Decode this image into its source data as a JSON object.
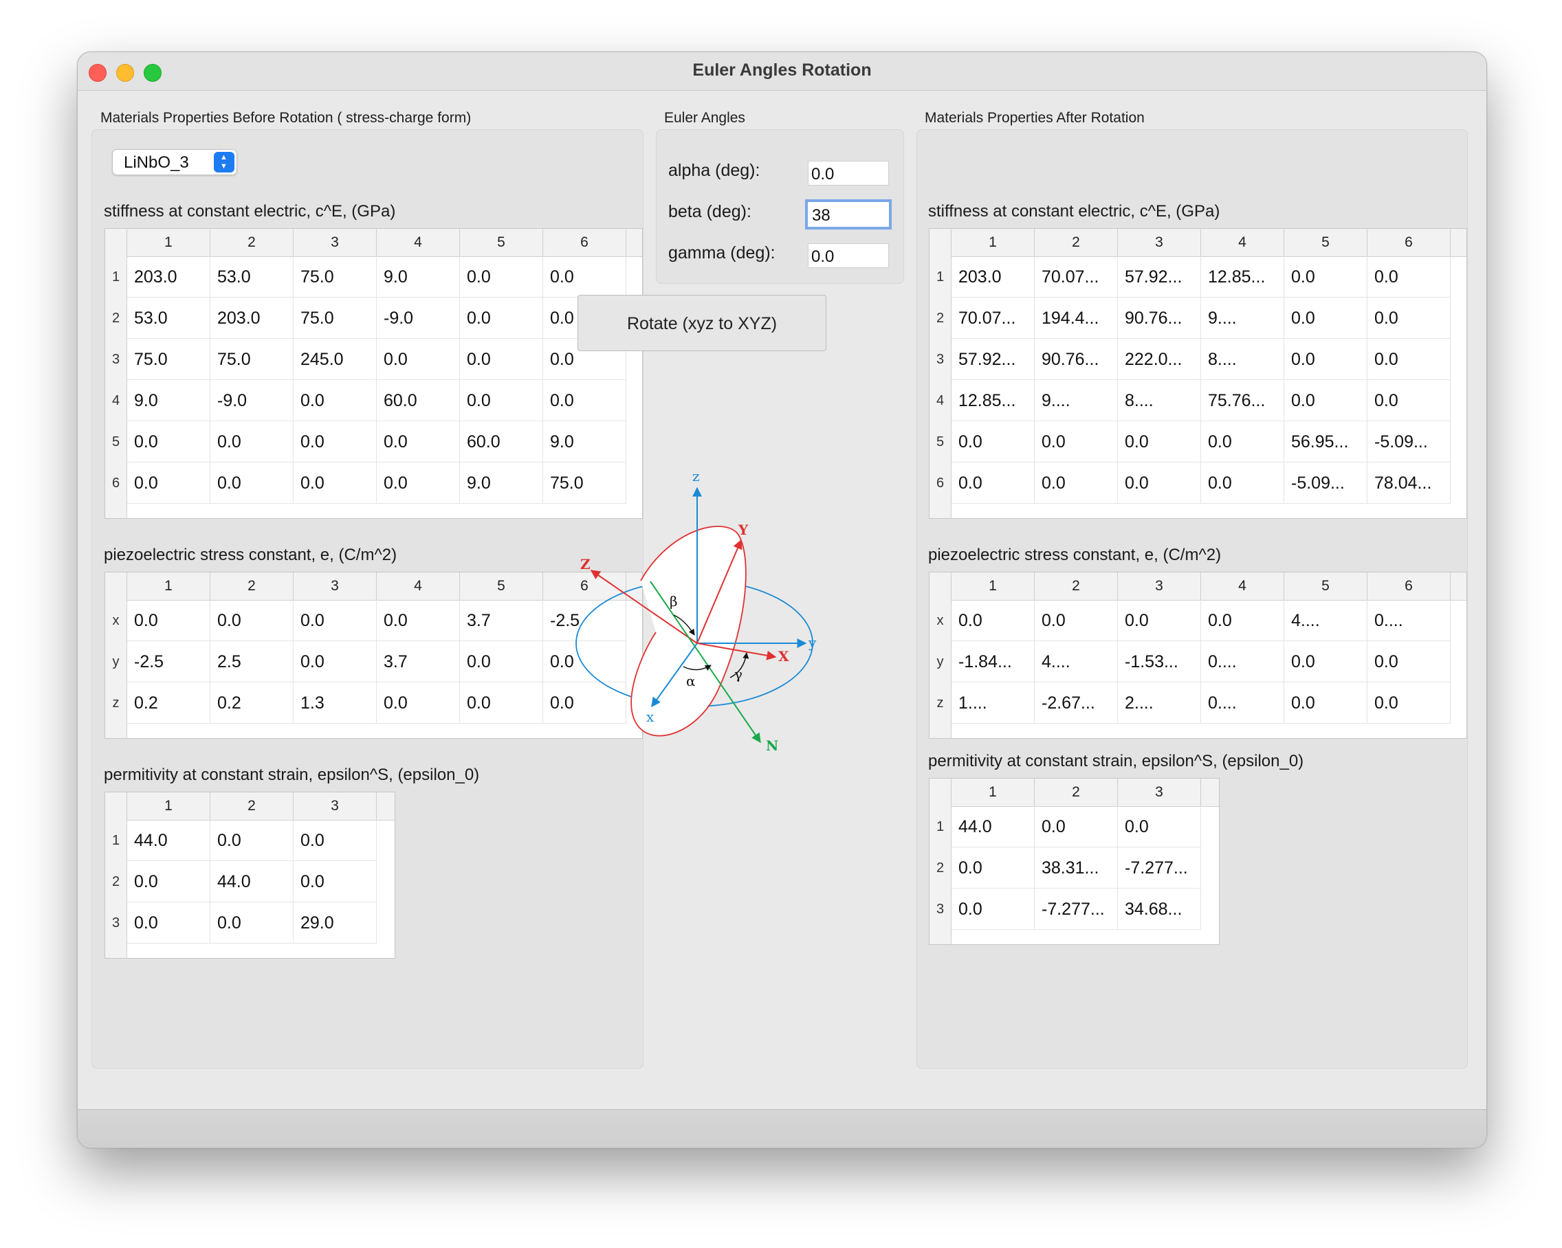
{
  "window": {
    "title": "Euler Angles Rotation"
  },
  "before": {
    "group_title": "Materials Properties Before Rotation ( stress-charge form)",
    "material": "LiNbO_3",
    "stiffness": {
      "label": "stiffness at constant electric, c^E, (GPa)",
      "cols": [
        "1",
        "2",
        "3",
        "4",
        "5",
        "6"
      ],
      "rows": [
        "1",
        "2",
        "3",
        "4",
        "5",
        "6"
      ],
      "values": [
        [
          "203.0",
          "53.0",
          "75.0",
          "9.0",
          "0.0",
          "0.0"
        ],
        [
          "53.0",
          "203.0",
          "75.0",
          "-9.0",
          "0.0",
          "0.0"
        ],
        [
          "75.0",
          "75.0",
          "245.0",
          "0.0",
          "0.0",
          "0.0"
        ],
        [
          "9.0",
          "-9.0",
          "0.0",
          "60.0",
          "0.0",
          "0.0"
        ],
        [
          "0.0",
          "0.0",
          "0.0",
          "0.0",
          "60.0",
          "9.0"
        ],
        [
          "0.0",
          "0.0",
          "0.0",
          "0.0",
          "9.0",
          "75.0"
        ]
      ]
    },
    "piezo": {
      "label": "piezoelectric stress constant, e, (C/m^2)",
      "cols": [
        "1",
        "2",
        "3",
        "4",
        "5",
        "6"
      ],
      "rows": [
        "x",
        "y",
        "z"
      ],
      "values": [
        [
          "0.0",
          "0.0",
          "0.0",
          "0.0",
          "3.7",
          "-2.5"
        ],
        [
          "-2.5",
          "2.5",
          "0.0",
          "3.7",
          "0.0",
          "0.0"
        ],
        [
          "0.2",
          "0.2",
          "1.3",
          "0.0",
          "0.0",
          "0.0"
        ]
      ]
    },
    "permittivity": {
      "label": "permitivity at constant strain, epsilon^S, (epsilon_0)",
      "cols": [
        "1",
        "2",
        "3"
      ],
      "rows": [
        "1",
        "2",
        "3"
      ],
      "values": [
        [
          "44.0",
          "0.0",
          "0.0"
        ],
        [
          "0.0",
          "44.0",
          "0.0"
        ],
        [
          "0.0",
          "0.0",
          "29.0"
        ]
      ]
    }
  },
  "euler": {
    "group_title": "Euler Angles",
    "alpha_label": "alpha (deg):",
    "alpha_value": "0.0",
    "beta_label": "beta (deg):",
    "beta_value": "38",
    "gamma_label": "gamma (deg):",
    "gamma_value": "0.0",
    "rotate_label": "Rotate (xyz to XYZ)",
    "diagram_labels": {
      "z": "z",
      "x": "x",
      "y": "y",
      "Z": "Z",
      "X": "X",
      "Y": "Y",
      "N": "N",
      "alpha": "α",
      "beta": "β",
      "gamma": "γ"
    },
    "colors": {
      "original": "#1a8ad4",
      "rotated": "#e03131",
      "node": "#1aa84a"
    }
  },
  "after": {
    "group_title": "Materials Properties After Rotation",
    "stiffness": {
      "label": "stiffness at constant electric, c^E, (GPa)",
      "cols": [
        "1",
        "2",
        "3",
        "4",
        "5",
        "6"
      ],
      "rows": [
        "1",
        "2",
        "3",
        "4",
        "5",
        "6"
      ],
      "values": [
        [
          "203.0",
          "70.07...",
          "57.92...",
          "12.85...",
          "0.0",
          "0.0"
        ],
        [
          "70.07...",
          "194.4...",
          "90.76...",
          "9....",
          "0.0",
          "0.0"
        ],
        [
          "57.92...",
          "90.76...",
          "222.0...",
          "8....",
          "0.0",
          "0.0"
        ],
        [
          "12.85...",
          "9....",
          "8....",
          "75.76...",
          "0.0",
          "0.0"
        ],
        [
          "0.0",
          "0.0",
          "0.0",
          "0.0",
          "56.95...",
          "-5.09..."
        ],
        [
          "0.0",
          "0.0",
          "0.0",
          "0.0",
          "-5.09...",
          "78.04..."
        ]
      ]
    },
    "piezo": {
      "label": "piezoelectric stress constant, e, (C/m^2)",
      "cols": [
        "1",
        "2",
        "3",
        "4",
        "5",
        "6"
      ],
      "rows": [
        "x",
        "y",
        "z"
      ],
      "values": [
        [
          "0.0",
          "0.0",
          "0.0",
          "0.0",
          "4....",
          "0...."
        ],
        [
          "-1.84...",
          "4....",
          "-1.53...",
          "0....",
          "0.0",
          "0.0"
        ],
        [
          "1....",
          "-2.67...",
          "2....",
          "0....",
          "0.0",
          "0.0"
        ]
      ]
    },
    "permittivity": {
      "label": "permitivity at constant strain, epsilon^S, (epsilon_0)",
      "cols": [
        "1",
        "2",
        "3"
      ],
      "rows": [
        "1",
        "2",
        "3"
      ],
      "values": [
        [
          "44.0",
          "0.0",
          "0.0"
        ],
        [
          "0.0",
          "38.31...",
          "-7.277..."
        ],
        [
          "0.0",
          "-7.277...",
          "34.68..."
        ]
      ]
    }
  }
}
